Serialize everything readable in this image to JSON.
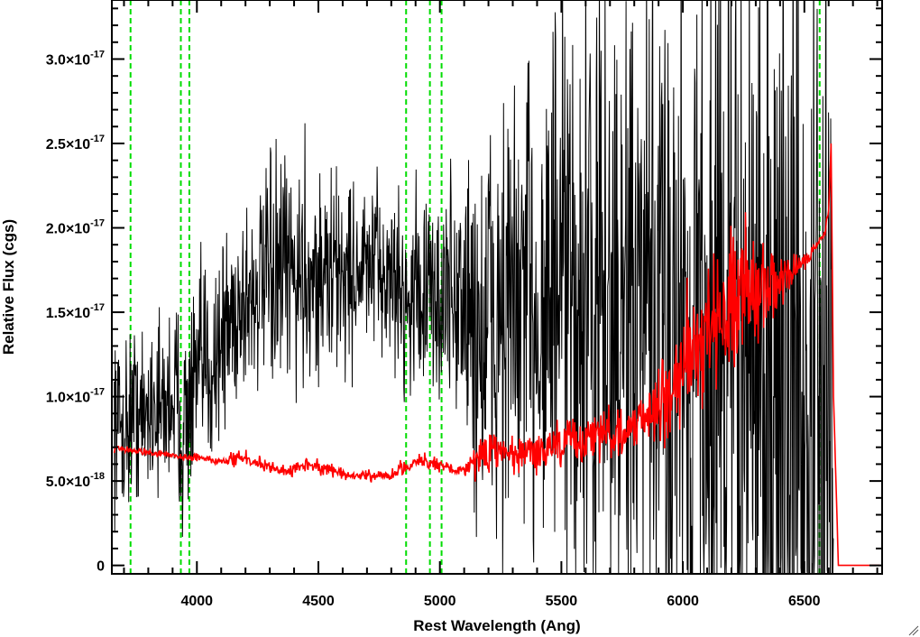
{
  "chart_data": {
    "type": "line",
    "xlabel": "Rest Wavelength (Ang)",
    "ylabel": "Relative Flux (cgs)",
    "xlim": [
      3650,
      6820
    ],
    "ylim": [
      -5e-19,
      3.35e-17
    ],
    "x_ticks": [
      {
        "value": 4000,
        "label": "4000"
      },
      {
        "value": 4500,
        "label": "4500"
      },
      {
        "value": 5000,
        "label": "5000"
      },
      {
        "value": 5500,
        "label": "5500"
      },
      {
        "value": 6000,
        "label": "6000"
      },
      {
        "value": 6500,
        "label": "6500"
      }
    ],
    "y_ticks": [
      {
        "value": 0,
        "mantissa": "0",
        "exponent": ""
      },
      {
        "value": 5e-18,
        "mantissa": "5.0×10",
        "exponent": "-18"
      },
      {
        "value": 1e-17,
        "mantissa": "1.0×10",
        "exponent": "-17"
      },
      {
        "value": 1.5e-17,
        "mantissa": "1.5×10",
        "exponent": "-17"
      },
      {
        "value": 2e-17,
        "mantissa": "2.0×10",
        "exponent": "-17"
      },
      {
        "value": 2.5e-17,
        "mantissa": "2.5×10",
        "exponent": "-17"
      },
      {
        "value": 3e-17,
        "mantissa": "3.0×10",
        "exponent": "-17"
      }
    ],
    "grid": false,
    "reference_lines": [
      {
        "x": 3727,
        "color": "#00dd00",
        "style": "dashed"
      },
      {
        "x": 3934,
        "color": "#00dd00",
        "style": "dashed"
      },
      {
        "x": 3969,
        "color": "#00dd00",
        "style": "dashed"
      },
      {
        "x": 4861,
        "color": "#00dd00",
        "style": "dashed"
      },
      {
        "x": 4959,
        "color": "#00dd00",
        "style": "dashed"
      },
      {
        "x": 5007,
        "color": "#00dd00",
        "style": "dashed"
      },
      {
        "x": 6563,
        "color": "#00dd00",
        "style": "dashed"
      }
    ],
    "series": [
      {
        "color": "#000000",
        "x": [
          3660,
          3700,
          3740,
          3780,
          3820,
          3860,
          3900,
          3940,
          3980,
          4020,
          4060,
          4100,
          4140,
          4180,
          4220,
          4260,
          4300,
          4340,
          4380,
          4420,
          4460,
          4500,
          4540,
          4580,
          4620,
          4660,
          4700,
          4740,
          4780,
          4820,
          4860,
          4900,
          4940,
          4980,
          5020,
          5060,
          5100,
          5140,
          5180,
          5220,
          5260,
          5300,
          5340,
          5380,
          5420,
          5460,
          5500,
          5540,
          5580,
          5620,
          5660,
          5700,
          5740,
          5780,
          5820,
          5860,
          5900,
          5940,
          5980,
          6020,
          6060,
          6100,
          6140,
          6180,
          6220,
          6260,
          6300,
          6340,
          6380,
          6420,
          6460,
          6500,
          6540,
          6580,
          6620
        ],
        "y": [
          9e-18,
          8e-18,
          9.5e-18,
          8.5e-18,
          1e-17,
          9e-18,
          1.05e-17,
          8e-18,
          1e-17,
          1.15e-17,
          1.2e-17,
          1.35e-17,
          1.45e-17,
          1.55e-17,
          1.6e-17,
          1.65e-17,
          1.7e-17,
          1.7e-17,
          1.72e-17,
          1.72e-17,
          1.75e-17,
          1.7e-17,
          1.72e-17,
          1.75e-17,
          1.72e-17,
          1.75e-17,
          1.75e-17,
          1.75e-17,
          1.72e-17,
          1.7e-17,
          1.55e-17,
          1.65e-17,
          1.6e-17,
          1.55e-17,
          1.6e-17,
          1.62e-17,
          1.55e-17,
          1.4e-17,
          1.35e-17,
          1.4e-17,
          1.5e-17,
          1.45e-17,
          1.5e-17,
          1.55e-17,
          1.6e-17,
          1.6e-17,
          1.55e-17,
          1.5e-17,
          1.5e-17,
          1.45e-17,
          1.5e-17,
          1.45e-17,
          1.4e-17,
          1.4e-17,
          1.35e-17,
          1.4e-17,
          1.4e-17,
          1.45e-17,
          1.5e-17,
          1.45e-17,
          1.4e-17,
          1.35e-17,
          1.35e-17,
          1.3e-17,
          1.25e-17,
          1.2e-17,
          1.2e-17,
          1.15e-17,
          1.1e-17,
          1e-17,
          9.5e-18,
          9e-18,
          9e-18,
          8.5e-18,
          8e-18
        ],
        "noise_sigma": [
          2.5e-18,
          2.5e-18,
          2.5e-18,
          2.5e-18,
          2.5e-18,
          2.5e-18,
          3e-18,
          3e-18,
          3e-18,
          3e-18,
          3e-18,
          3e-18,
          3e-18,
          3e-18,
          3e-18,
          3e-18,
          3e-18,
          3.5e-18,
          3.5e-18,
          3.5e-18,
          3.5e-18,
          3e-18,
          3e-18,
          3e-18,
          3e-18,
          2.5e-18,
          2.5e-18,
          2.5e-18,
          2.5e-18,
          2.5e-18,
          2.5e-18,
          3e-18,
          3e-18,
          3e-18,
          3.5e-18,
          3.5e-18,
          4.5e-18,
          5.5e-18,
          6.5e-18,
          7e-18,
          7e-18,
          7e-18,
          7.5e-18,
          7.5e-18,
          8e-18,
          8e-18,
          8.5e-18,
          9e-18,
          9e-18,
          9e-18,
          9.5e-18,
          9.5e-18,
          9.5e-18,
          9.5e-18,
          1e-17,
          1e-17,
          1.05e-17,
          1.1e-17,
          1.15e-17,
          1.15e-17,
          1.2e-17,
          1.2e-17,
          1.25e-17,
          1.25e-17,
          1.3e-17,
          1.3e-17,
          1.3e-17,
          1.35e-17,
          1.35e-17,
          1.35e-17,
          1.4e-17,
          1.4e-17,
          1.4e-17,
          1.4e-17,
          1.4e-17
        ]
      },
      {
        "color": "#ff0000",
        "x": [
          3660,
          3700,
          3750,
          3800,
          3850,
          3900,
          3950,
          4000,
          4050,
          4100,
          4150,
          4200,
          4250,
          4300,
          4350,
          4400,
          4450,
          4500,
          4550,
          4600,
          4650,
          4700,
          4750,
          4800,
          4850,
          4900,
          4950,
          5000,
          5050,
          5100,
          5150,
          5200,
          5250,
          5300,
          5350,
          5400,
          5450,
          5500,
          5550,
          5600,
          5650,
          5700,
          5750,
          5800,
          5850,
          5900,
          5950,
          6000,
          6050,
          6100,
          6150,
          6200,
          6250,
          6300,
          6350,
          6400,
          6450,
          6500,
          6550,
          6580,
          6600,
          6610,
          6620,
          6640,
          6700,
          6760,
          6810
        ],
        "y": [
          6.9e-18,
          6.9e-18,
          6.8e-18,
          6.7e-18,
          6.6e-18,
          6.5e-18,
          6.4e-18,
          6.4e-18,
          6.3e-18,
          6.2e-18,
          6.3e-18,
          6.4e-18,
          6.1e-18,
          5.8e-18,
          5.6e-18,
          5.7e-18,
          5.9e-18,
          5.8e-18,
          5.6e-18,
          5.4e-18,
          5.3e-18,
          5.3e-18,
          5.3e-18,
          5.3e-18,
          5.6e-18,
          6.2e-18,
          6e-18,
          5.9e-18,
          5.7e-18,
          5.7e-18,
          6.5e-18,
          7e-18,
          6.8e-18,
          6.5e-18,
          6.6e-18,
          6.8e-18,
          6.9e-18,
          7.1e-18,
          7.4e-18,
          7.6e-18,
          7.7e-18,
          7.8e-18,
          8e-18,
          8.3e-18,
          8.6e-18,
          9.2e-18,
          1.05e-17,
          1.15e-17,
          1.3e-17,
          1.38e-17,
          1.45e-17,
          1.55e-17,
          1.6e-17,
          1.65e-17,
          1.7e-17,
          1.68e-17,
          1.75e-17,
          1.8e-17,
          1.9e-17,
          1.95e-17,
          2.1e-17,
          2.5e-17,
          1e-17,
          0,
          0,
          0,
          0
        ],
        "noise_sigma": [
          1e-19,
          1e-19,
          1e-19,
          1e-19,
          1e-19,
          1e-19,
          1e-19,
          1e-19,
          1e-19,
          1e-19,
          2e-19,
          2e-19,
          2e-19,
          2e-19,
          2e-19,
          2e-19,
          2e-19,
          2e-19,
          2e-19,
          2e-19,
          1.5e-19,
          1.5e-19,
          1.5e-19,
          1.5e-19,
          3e-19,
          3e-19,
          3e-19,
          2e-19,
          2e-19,
          2e-19,
          6e-19,
          8e-19,
          7e-19,
          6e-19,
          5e-19,
          6e-19,
          7e-19,
          7e-19,
          7e-19,
          8e-19,
          8e-19,
          8e-19,
          7e-19,
          7e-19,
          7e-19,
          1.2e-18,
          1.5e-18,
          1.8e-18,
          1.8e-18,
          2e-18,
          2e-18,
          2e-18,
          2e-18,
          1.5e-18,
          1.2e-18,
          1e-18,
          5e-19,
          3e-19,
          2e-19,
          2e-19,
          0,
          0,
          0,
          0,
          0,
          0,
          0
        ]
      }
    ]
  }
}
